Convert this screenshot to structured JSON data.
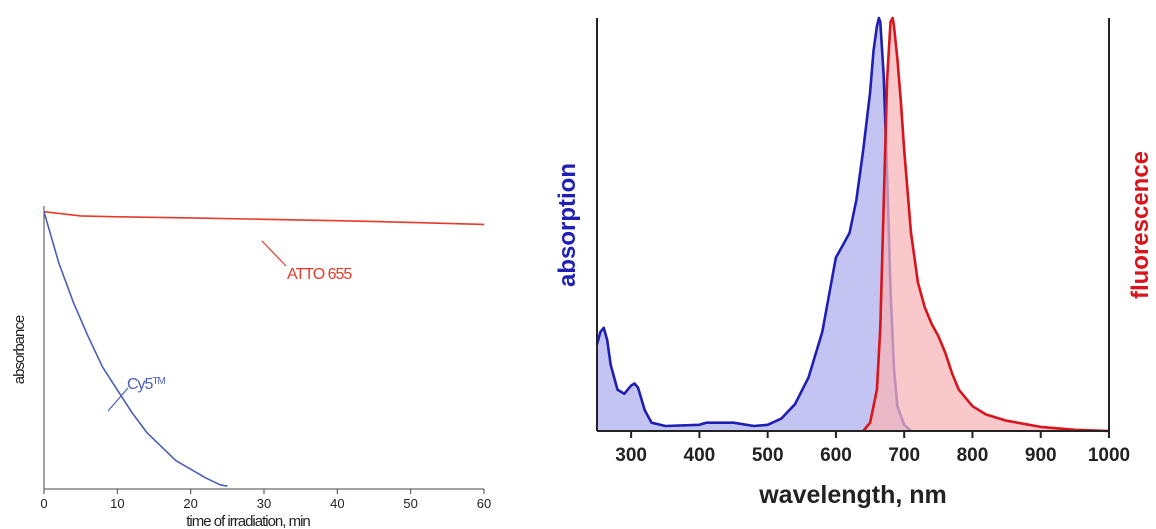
{
  "chart_data": [
    {
      "type": "line",
      "title": "",
      "xlabel": "time of irradiation, min",
      "ylabel": "absorbance",
      "xlim": [
        0,
        60
      ],
      "ylim": [
        0,
        1
      ],
      "xticks": [
        0,
        10,
        20,
        30,
        40,
        50,
        60
      ],
      "grid": false,
      "colors": {
        "ATTO 655": "#e8392b",
        "Cy5": "#4a5fb5"
      },
      "series": [
        {
          "name": "ATTO 655",
          "x": [
            0,
            5,
            10,
            20,
            30,
            40,
            50,
            60
          ],
          "y": [
            0.98,
            0.965,
            0.962,
            0.958,
            0.953,
            0.948,
            0.942,
            0.935
          ]
        },
        {
          "name": "Cy5",
          "name_suffix": "TM",
          "x": [
            0,
            2,
            4,
            6,
            8,
            10,
            12,
            14,
            16,
            18,
            20,
            22,
            24,
            25
          ],
          "y": [
            0.98,
            0.8,
            0.66,
            0.54,
            0.43,
            0.35,
            0.27,
            0.2,
            0.15,
            0.1,
            0.07,
            0.04,
            0.015,
            0.01
          ]
        }
      ]
    },
    {
      "type": "area",
      "title": "",
      "xlabel": "wavelength, nm",
      "ylabel_left": "absorption",
      "ylabel_right": "fluorescence",
      "xlim": [
        250,
        1000
      ],
      "ylim": [
        0,
        1
      ],
      "xticks": [
        300,
        400,
        500,
        600,
        700,
        800,
        900,
        1000
      ],
      "grid": false,
      "colors": {
        "absorption_line": "#1f1fb4",
        "absorption_fill": "#b8baf0",
        "fluorescence_line": "#d8141c",
        "fluorescence_fill": "#f6b6ba"
      },
      "series": [
        {
          "name": "absorption",
          "x": [
            250,
            255,
            260,
            265,
            270,
            280,
            290,
            300,
            305,
            310,
            320,
            330,
            350,
            400,
            410,
            450,
            480,
            500,
            520,
            540,
            560,
            580,
            590,
            600,
            610,
            620,
            630,
            640,
            650,
            655,
            660,
            663,
            665,
            670,
            675,
            680,
            685,
            690,
            700,
            710
          ],
          "y": [
            0.21,
            0.24,
            0.25,
            0.22,
            0.16,
            0.1,
            0.09,
            0.11,
            0.115,
            0.105,
            0.05,
            0.02,
            0.012,
            0.015,
            0.02,
            0.02,
            0.012,
            0.015,
            0.03,
            0.065,
            0.13,
            0.24,
            0.33,
            0.42,
            0.45,
            0.48,
            0.56,
            0.68,
            0.82,
            0.92,
            0.98,
            1.0,
            0.99,
            0.86,
            0.62,
            0.34,
            0.15,
            0.06,
            0.015,
            0
          ]
        },
        {
          "name": "fluorescence",
          "x": [
            640,
            650,
            660,
            665,
            670,
            675,
            680,
            683,
            685,
            690,
            695,
            700,
            710,
            720,
            730,
            740,
            750,
            760,
            770,
            780,
            800,
            820,
            850,
            900,
            950,
            1000
          ],
          "y": [
            0,
            0.02,
            0.1,
            0.25,
            0.55,
            0.85,
            0.99,
            1.0,
            0.98,
            0.9,
            0.8,
            0.68,
            0.48,
            0.36,
            0.3,
            0.26,
            0.23,
            0.19,
            0.14,
            0.1,
            0.06,
            0.04,
            0.025,
            0.01,
            0.003,
            0
          ]
        }
      ]
    }
  ]
}
